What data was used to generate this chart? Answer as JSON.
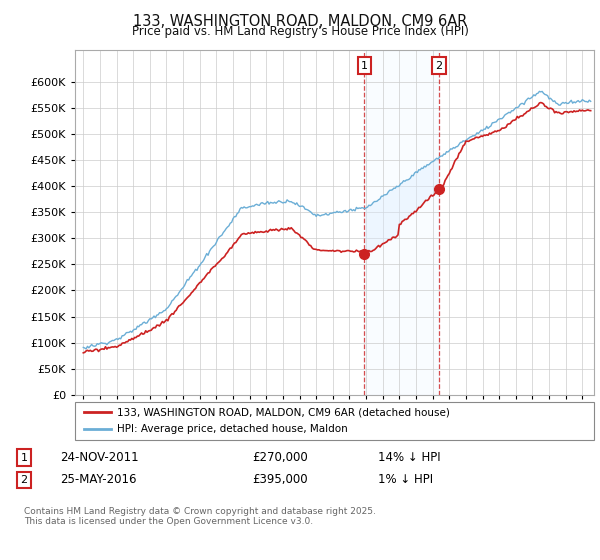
{
  "title": "133, WASHINGTON ROAD, MALDON, CM9 6AR",
  "subtitle": "Price paid vs. HM Land Registry's House Price Index (HPI)",
  "legend_line1": "133, WASHINGTON ROAD, MALDON, CM9 6AR (detached house)",
  "legend_line2": "HPI: Average price, detached house, Maldon",
  "annotation1_date": "24-NOV-2011",
  "annotation1_price": "£270,000",
  "annotation1_hpi": "14% ↓ HPI",
  "annotation2_date": "25-MAY-2016",
  "annotation2_price": "£395,000",
  "annotation2_hpi": "1% ↓ HPI",
  "footnote": "Contains HM Land Registry data © Crown copyright and database right 2025.\nThis data is licensed under the Open Government Licence v3.0.",
  "hpi_color": "#6baed6",
  "price_color": "#cc2222",
  "shading_color": "#ddeeff",
  "annotation_color": "#cc2222",
  "background_color": "#ffffff",
  "grid_color": "#cccccc",
  "ylim_min": 0,
  "ylim_max": 660000,
  "sale1_year": 2011.9,
  "sale1_price": 270000,
  "sale2_year": 2016.38,
  "sale2_price": 395000
}
